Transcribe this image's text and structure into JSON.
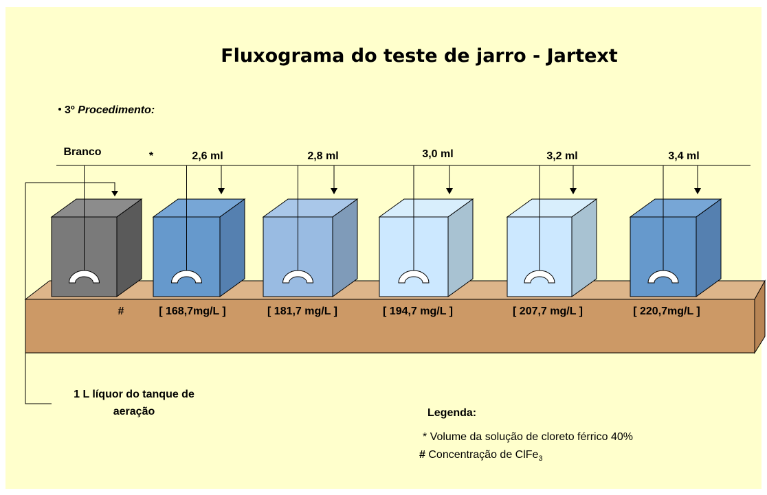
{
  "title": "Fluxograma do teste de jarro - Jartext",
  "procedure": {
    "number": "3º",
    "label": "Procedimento:"
  },
  "dose_marker": "*",
  "concentration_marker": "#",
  "jars": [
    {
      "dose": "Branco"
    },
    {
      "dose": "2,6 ml",
      "concentration": "[ 168,7mg/L ]"
    },
    {
      "dose": "2,8 ml",
      "concentration": "[ 181,7 mg/L ]"
    },
    {
      "dose": "3,0 ml",
      "concentration": "[ 194,7 mg/L ]"
    },
    {
      "dose": "3,2 ml",
      "concentration": "[ 207,7 mg/L ]"
    },
    {
      "dose": "3,4 ml",
      "concentration": "[ 220,7mg/L ]"
    }
  ],
  "sample": {
    "lines": [
      "1 L líquor do tanque de",
      "aeração"
    ]
  },
  "legend": {
    "title": "Legenda:",
    "items": [
      {
        "marker": "*",
        "text": "Volume da  solução de cloreto férrico 40%"
      },
      {
        "marker": "#",
        "text": "Concentração de ClFe",
        "subscript": "3"
      }
    ]
  }
}
